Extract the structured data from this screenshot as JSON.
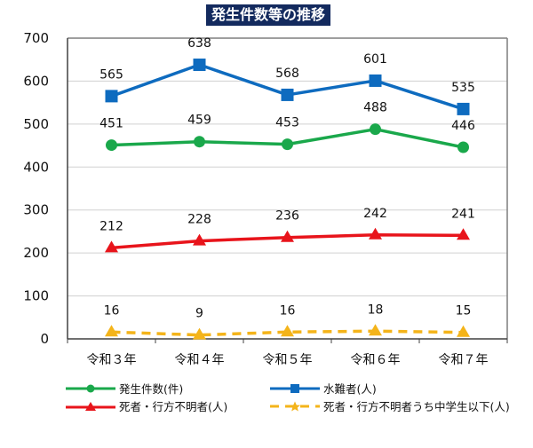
{
  "chart_data": {
    "type": "line",
    "title": "発生件数等の推移",
    "xlabel": "",
    "ylabel": "",
    "categories": [
      "令和３年",
      "令和４年",
      "令和５年",
      "令和６年",
      "令和７年"
    ],
    "ylim": [
      0,
      700
    ],
    "yticks": [
      0,
      100,
      200,
      300,
      400,
      500,
      600,
      700
    ],
    "grid": true,
    "legend_position": "bottom",
    "series": [
      {
        "key": "incidents",
        "name": "発生件数(件)",
        "values": [
          451,
          459,
          453,
          488,
          446
        ],
        "color": "#1aa84b",
        "marker": "circle",
        "dash": false
      },
      {
        "key": "victims",
        "name": "水難者(人)",
        "values": [
          565,
          638,
          568,
          601,
          535
        ],
        "color": "#0e6bbf",
        "marker": "square",
        "dash": false
      },
      {
        "key": "deaths",
        "name": "死者・行方不明者(人)",
        "values": [
          212,
          228,
          236,
          242,
          241
        ],
        "color": "#e8141b",
        "marker": "triangle",
        "dash": false
      },
      {
        "key": "children",
        "name": "死者・行方不明者うち中学生以下(人)",
        "values": [
          16,
          9,
          16,
          18,
          15
        ],
        "color": "#f4b41a",
        "marker": "triangle",
        "legend_marker": "star",
        "dash": true
      }
    ]
  }
}
